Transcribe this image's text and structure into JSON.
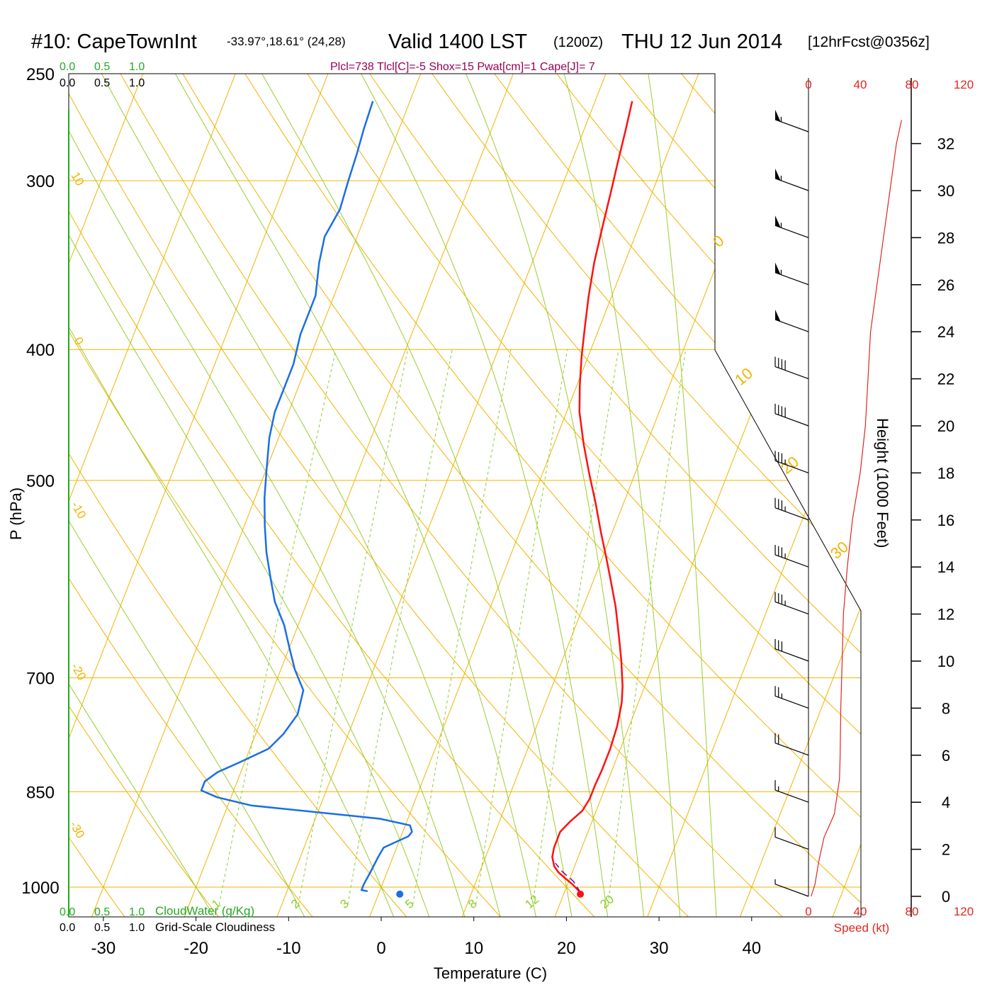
{
  "header": {
    "station": "#10: CapeTownInt",
    "coords": "-33.97°,18.61° (24,28)",
    "valid": "Valid 1400 LST",
    "zulu": "(1200Z)",
    "date": "THU 12 Jun 2014",
    "fcst": "[12hrFcst@0356z]",
    "params": "Plcl=738 Tlcl[C]=-5 Shox=15 Pwat[cm]=1 Cape[J]= 7"
  },
  "colors": {
    "temperature": "#ff1111",
    "dewpoint": "#1a6ee6",
    "isobar": "#f0b400",
    "isotherm": "#f0b400",
    "dry_adiabat": "#f0b400",
    "moist_adiabat": "#9acd32",
    "mixing_ratio": "#8ccd28",
    "cloud_water": "#22aa22",
    "wind_speed": "#e0261f",
    "params_text": "#990055",
    "black": "#000000"
  },
  "chart_data": {
    "type": "line",
    "subtype": "skew-T log-P sounding",
    "xlabel": "Temperature (C)",
    "ylabel": "P (hPa)",
    "right_ylabel": "Height (1000 Feet)",
    "xlim": [
      -34,
      45
    ],
    "ylim": [
      1030,
      250
    ],
    "y_scale": "log",
    "x_ticks": [
      -30,
      -20,
      -10,
      0,
      10,
      20,
      30,
      40
    ],
    "y_ticks": [
      1000,
      850,
      700,
      500,
      400,
      300,
      250
    ],
    "height_ticks": [
      0,
      2,
      4,
      6,
      8,
      10,
      12,
      14,
      16,
      18,
      20,
      22,
      24,
      26,
      28,
      30,
      32
    ],
    "isotherm_labels": [
      "10",
      "0",
      "-10",
      "-20",
      "-30"
    ],
    "right_isotherm_labels": [
      "0",
      "10",
      "20",
      "30"
    ],
    "mixing_ratio_labels": [
      "1",
      "2",
      "3",
      "5",
      "8",
      "12",
      "20"
    ],
    "cloud_axis": {
      "ticks": [
        "0.0",
        "0.5",
        "1.0"
      ],
      "cloud_water_label": "CloudWater (g/Kg)",
      "cloudiness_label": "Grid-Scale Cloudiness"
    },
    "series": [
      {
        "name": "Temperature",
        "points": [
          [
            21.8,
            1010
          ],
          [
            20.5,
            995
          ],
          [
            19.5,
            985
          ],
          [
            18.5,
            975
          ],
          [
            17.8,
            965
          ],
          [
            17.2,
            950
          ],
          [
            17,
            935
          ],
          [
            17,
            910
          ],
          [
            17.6,
            895
          ],
          [
            18.5,
            878
          ],
          [
            18.8,
            860
          ],
          [
            18.8,
            840
          ],
          [
            18.9,
            820
          ],
          [
            18.9,
            790
          ],
          [
            18.7,
            760
          ],
          [
            18.2,
            730
          ],
          [
            17.6,
            710
          ],
          [
            16.4,
            680
          ],
          [
            15,
            650
          ],
          [
            13.5,
            620
          ],
          [
            12,
            595
          ],
          [
            10.4,
            570
          ],
          [
            8.7,
            545
          ],
          [
            7,
            520
          ],
          [
            5.1,
            495
          ],
          [
            3.2,
            470
          ],
          [
            1.4,
            445
          ],
          [
            0.3,
            425
          ],
          [
            -0.7,
            405
          ],
          [
            -1.6,
            385
          ],
          [
            -2.5,
            365
          ],
          [
            -3.3,
            345
          ],
          [
            -3.9,
            325
          ],
          [
            -4.5,
            305
          ],
          [
            -5,
            290
          ],
          [
            -5.5,
            275
          ],
          [
            -6,
            262
          ]
        ]
      },
      {
        "name": "Dewpoint",
        "points": [
          [
            -1.3,
            1007
          ],
          [
            -2,
            1005
          ],
          [
            -2,
            995
          ],
          [
            -1.8,
            975
          ],
          [
            -1.6,
            950
          ],
          [
            -1.4,
            935
          ],
          [
            -0.2,
            925
          ],
          [
            0.8,
            917
          ],
          [
            1,
            910
          ],
          [
            0.5,
            900
          ],
          [
            -3,
            890
          ],
          [
            -17.5,
            870
          ],
          [
            -21.5,
            858
          ],
          [
            -23.5,
            848
          ],
          [
            -23.5,
            835
          ],
          [
            -22.5,
            822
          ],
          [
            -20.5,
            808
          ],
          [
            -18,
            790
          ],
          [
            -17,
            770
          ],
          [
            -16.3,
            745
          ],
          [
            -16.7,
            715
          ],
          [
            -18.5,
            690
          ],
          [
            -20,
            665
          ],
          [
            -21.5,
            640
          ],
          [
            -23.5,
            615
          ],
          [
            -25,
            590
          ],
          [
            -26.5,
            565
          ],
          [
            -27.8,
            540
          ],
          [
            -29,
            515
          ],
          [
            -30,
            490
          ],
          [
            -31,
            465
          ],
          [
            -31.5,
            445
          ],
          [
            -31.5,
            430
          ],
          [
            -31.5,
            410
          ],
          [
            -32,
            390
          ],
          [
            -32,
            365
          ],
          [
            -33,
            345
          ],
          [
            -33.5,
            330
          ],
          [
            -33,
            315
          ],
          [
            -33.3,
            300
          ],
          [
            -33.5,
            287
          ],
          [
            -33.8,
            275
          ],
          [
            -34,
            262
          ]
        ]
      },
      {
        "name": "Parcel",
        "points": [
          [
            21.8,
            1010
          ],
          [
            20.5,
            990
          ],
          [
            19,
            975
          ],
          [
            17.8,
            960
          ]
        ]
      }
    ],
    "surface_points": {
      "temperature": [
        21.8,
        1012
      ],
      "dewpoint": [
        2.3,
        1012
      ]
    },
    "wind_speed": {
      "xlabel": "Speed (kt)",
      "ticks": [
        "0",
        "40",
        "80",
        "120"
      ],
      "xlim": [
        0,
        120
      ],
      "points": [
        [
          2,
          0
        ],
        [
          5,
          0.5
        ],
        [
          8,
          1.5
        ],
        [
          12,
          2.5
        ],
        [
          20,
          3.5
        ],
        [
          24,
          5
        ],
        [
          24.5,
          6
        ],
        [
          25,
          8
        ],
        [
          26,
          10
        ],
        [
          27,
          12
        ],
        [
          30,
          14
        ],
        [
          34,
          16
        ],
        [
          40,
          18
        ],
        [
          44,
          20
        ],
        [
          46,
          22
        ],
        [
          48,
          24
        ],
        [
          53,
          26
        ],
        [
          58,
          28
        ],
        [
          63,
          30
        ],
        [
          68,
          32
        ],
        [
          72,
          33
        ]
      ]
    },
    "wind_barbs": [
      {
        "height_kft": 32.5,
        "speed_kt": 55
      },
      {
        "height_kft": 30,
        "speed_kt": 55
      },
      {
        "height_kft": 28,
        "speed_kt": 55
      },
      {
        "height_kft": 26,
        "speed_kt": 55
      },
      {
        "height_kft": 24,
        "speed_kt": 50
      },
      {
        "height_kft": 22,
        "speed_kt": 40
      },
      {
        "height_kft": 20,
        "speed_kt": 40
      },
      {
        "height_kft": 18,
        "speed_kt": 35
      },
      {
        "height_kft": 16,
        "speed_kt": 35
      },
      {
        "height_kft": 14,
        "speed_kt": 35
      },
      {
        "height_kft": 12,
        "speed_kt": 35
      },
      {
        "height_kft": 10,
        "speed_kt": 30
      },
      {
        "height_kft": 8,
        "speed_kt": 25
      },
      {
        "height_kft": 6,
        "speed_kt": 20
      },
      {
        "height_kft": 4,
        "speed_kt": 15
      },
      {
        "height_kft": 2,
        "speed_kt": 10
      },
      {
        "height_kft": 0,
        "speed_kt": 5
      }
    ]
  }
}
